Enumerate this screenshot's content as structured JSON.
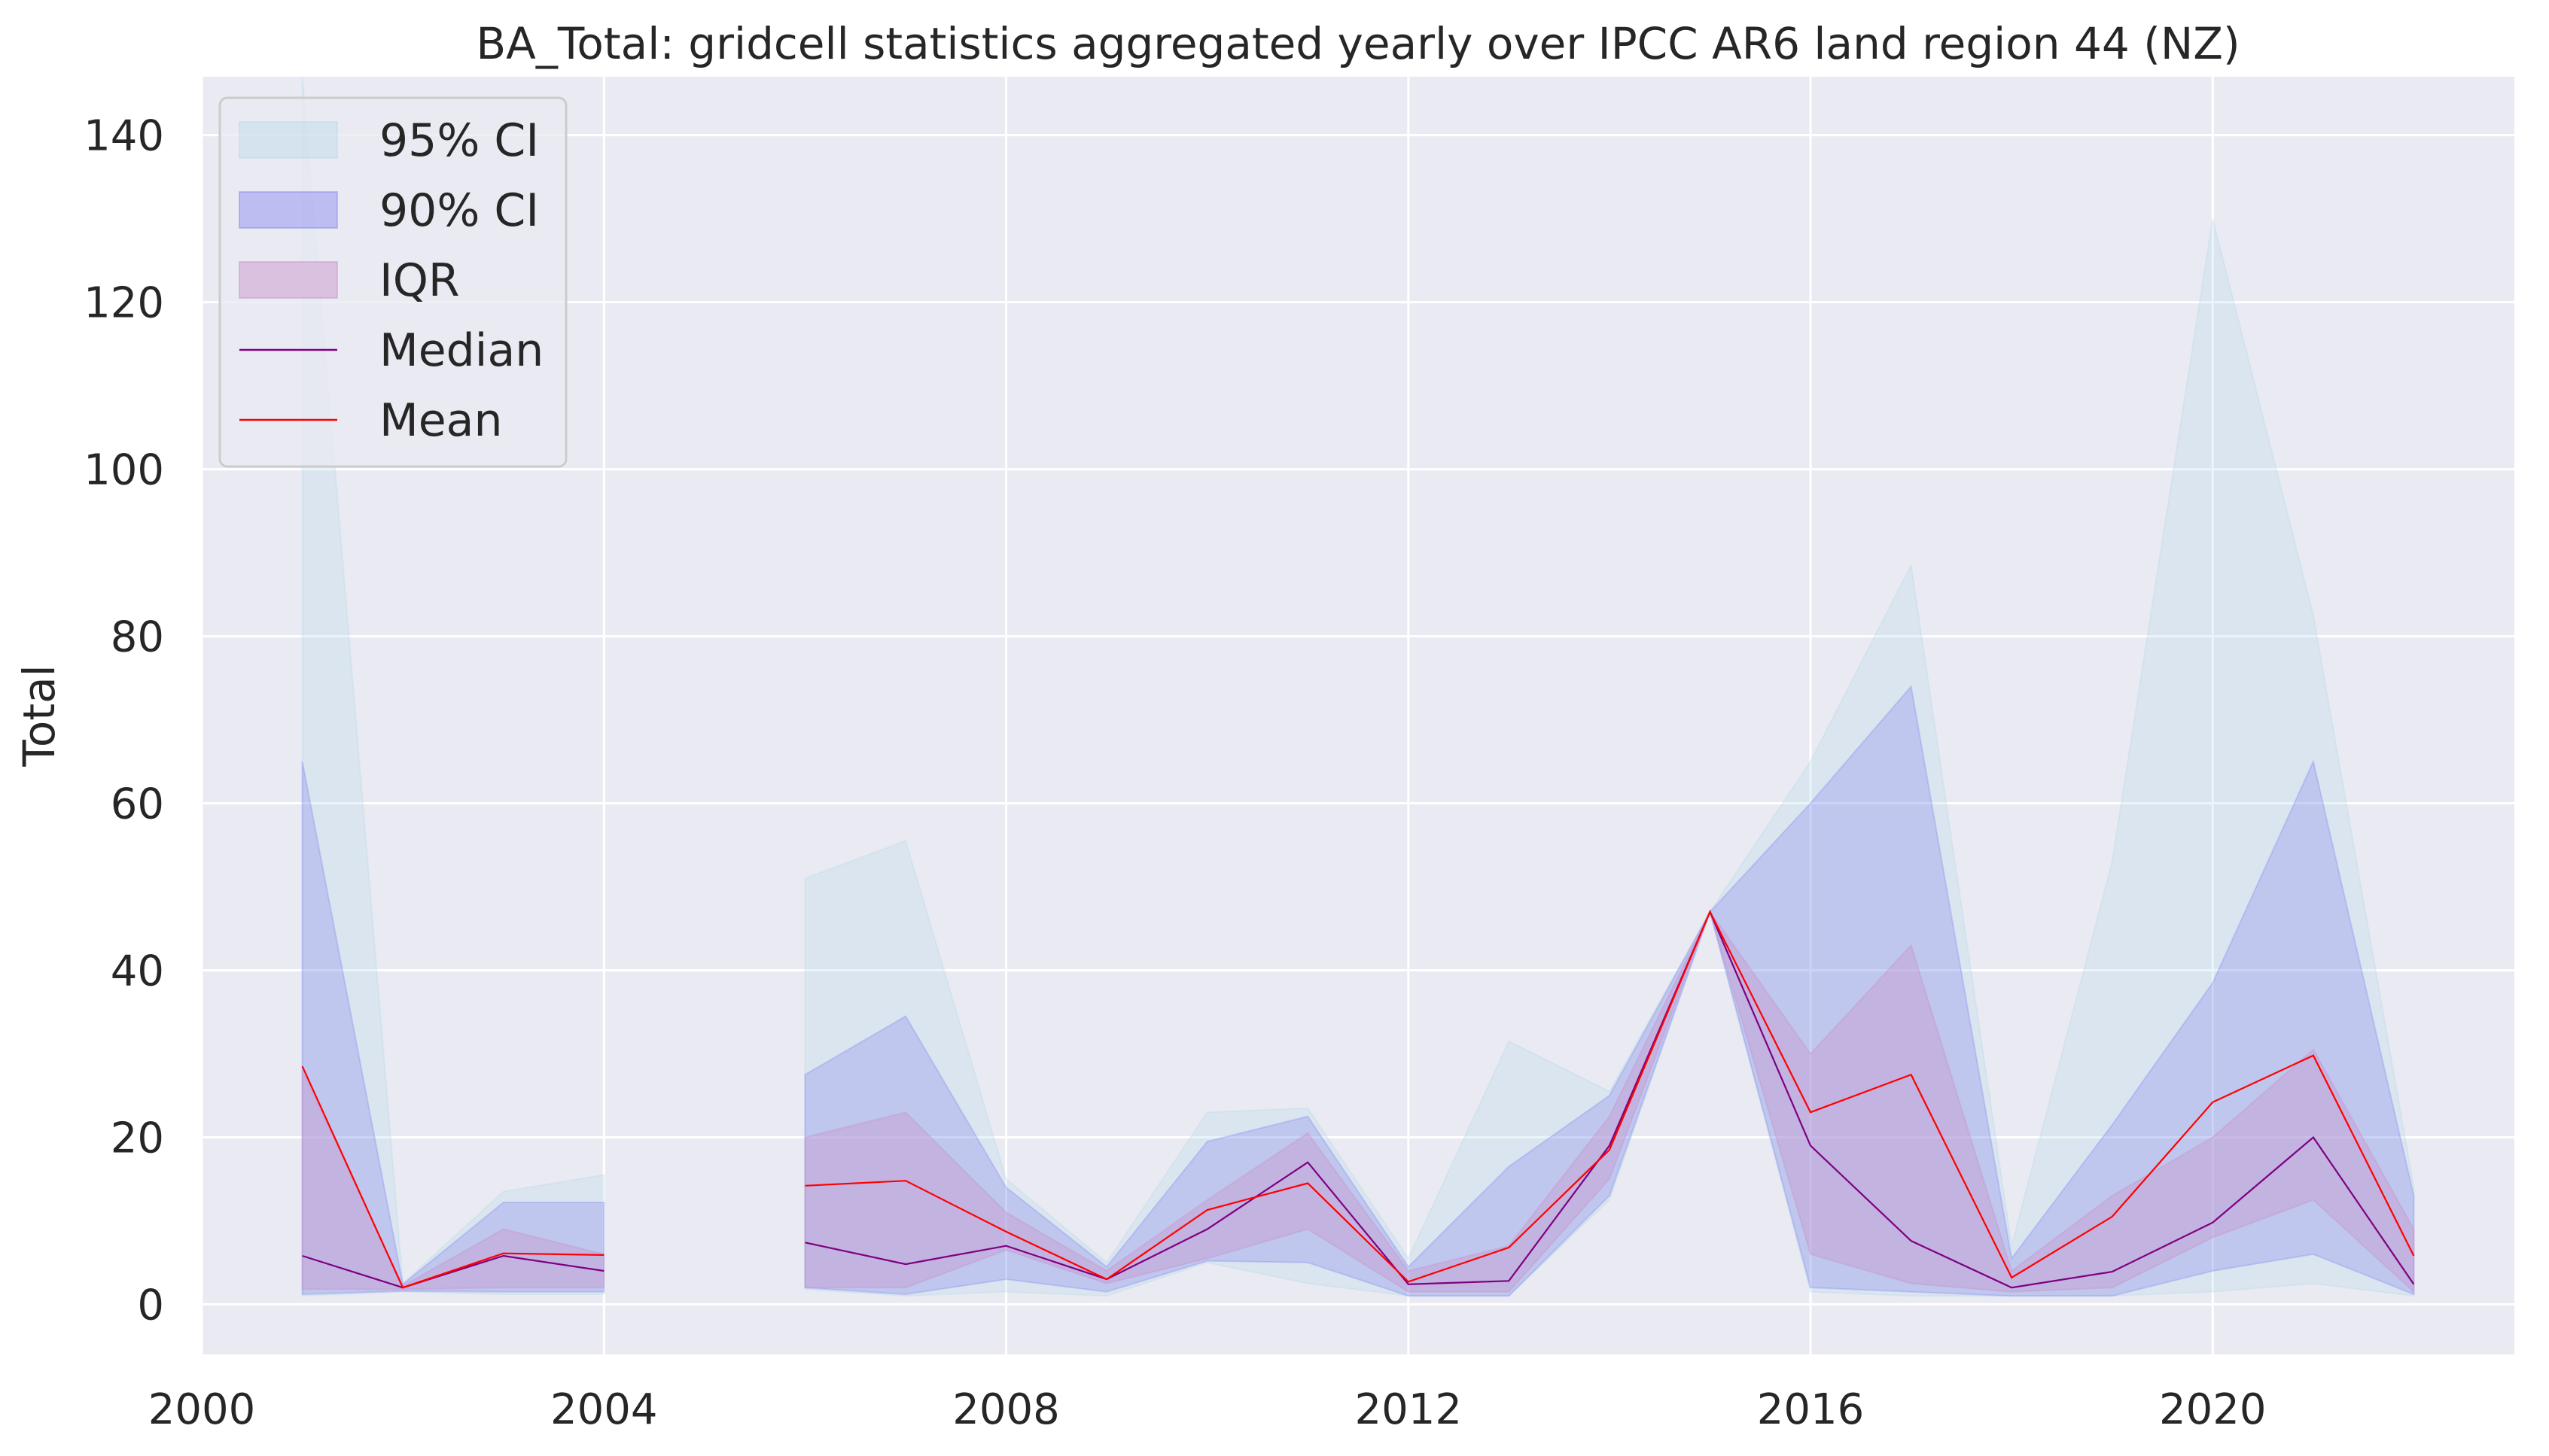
{
  "chart_data": {
    "type": "area",
    "title": "BA_Total: gridcell statistics aggregated yearly over IPCC AR6 land region 44 (NZ)",
    "xlabel": "",
    "ylabel": "Total",
    "xlim": [
      2000,
      2023
    ],
    "ylim": [
      -6,
      147
    ],
    "xticks": [
      2000,
      2004,
      2008,
      2012,
      2016,
      2020
    ],
    "yticks": [
      0,
      20,
      40,
      60,
      80,
      100,
      120,
      140
    ],
    "grid": true,
    "legend_position": "top-left",
    "segments": [
      {
        "x": [
          2001,
          2002,
          2003,
          2004
        ],
        "ci95": {
          "lower": [
            1.0,
            1.5,
            1.2,
            1.2
          ],
          "upper": [
            147,
            2.5,
            13.5,
            15.5
          ]
        },
        "ci90": {
          "lower": [
            1.2,
            1.6,
            1.5,
            1.5
          ],
          "upper": [
            65,
            2.4,
            12.2,
            12.2
          ]
        },
        "iqr": {
          "lower": [
            1.8,
            1.8,
            2.0,
            2.0
          ],
          "upper": [
            28,
            2.2,
            9.0,
            6.0
          ]
        },
        "median": [
          5.8,
          2.0,
          5.8,
          4.0
        ],
        "mean": [
          28.5,
          2.0,
          6.1,
          5.9
        ]
      },
      {
        "x": [
          2006,
          2007,
          2008,
          2009,
          2010,
          2011,
          2012,
          2013,
          2014,
          2015,
          2016,
          2017,
          2018,
          2019,
          2020,
          2021,
          2022
        ],
        "ci95": {
          "lower": [
            1.8,
            1.0,
            1.5,
            1.0,
            5.0,
            2.5,
            1.0,
            1.0,
            12.5,
            47.0,
            1.5,
            1.0,
            1.0,
            1.0,
            1.5,
            2.5,
            1.0
          ],
          "upper": [
            51,
            55.5,
            15.0,
            5.0,
            23.0,
            23.5,
            5.5,
            31.5,
            25.5,
            47.0,
            65.0,
            88.5,
            7.0,
            53.0,
            130.0,
            82.5,
            14.0
          ]
        },
        "ci90": {
          "lower": [
            2.0,
            1.2,
            3.0,
            1.5,
            5.2,
            5.0,
            1.0,
            1.0,
            13.0,
            47.0,
            2.0,
            1.5,
            1.0,
            1.0,
            4.0,
            6.0,
            1.2
          ],
          "upper": [
            27.5,
            34.5,
            14.0,
            4.5,
            19.5,
            22.5,
            4.5,
            16.5,
            25.0,
            47.0,
            60.0,
            74.0,
            5.5,
            21.5,
            38.5,
            65.0,
            13.0
          ]
        },
        "iqr": {
          "lower": [
            2.0,
            2.0,
            6.5,
            2.5,
            5.5,
            9.0,
            1.5,
            1.5,
            15.0,
            47.0,
            6.0,
            2.5,
            1.5,
            2.0,
            8.0,
            12.5,
            1.5
          ],
          "upper": [
            20.0,
            23.0,
            11.0,
            4.0,
            12.5,
            20.5,
            4.0,
            7.0,
            22.5,
            47.0,
            30.0,
            43.0,
            4.0,
            13.0,
            20.0,
            30.5,
            9.0
          ]
        },
        "median": [
          7.4,
          4.8,
          7.0,
          3.0,
          9.0,
          17.0,
          2.4,
          2.8,
          19.0,
          47.0,
          19.0,
          7.6,
          2.0,
          3.9,
          9.8,
          20.0,
          2.4
        ],
        "mean": [
          14.2,
          14.8,
          8.7,
          3.0,
          11.3,
          14.5,
          2.7,
          6.8,
          18.5,
          47.0,
          23.0,
          27.5,
          3.2,
          10.5,
          24.2,
          29.8,
          5.8
        ]
      }
    ],
    "series": [
      {
        "name": "95% CI",
        "kind": "band",
        "color": "#add8e6"
      },
      {
        "name": "90% CI",
        "kind": "band",
        "color": "#7b7bf0"
      },
      {
        "name": "IQR",
        "kind": "band",
        "color": "#c890c8"
      },
      {
        "name": "Median",
        "kind": "line",
        "color": "#800080"
      },
      {
        "name": "Mean",
        "kind": "line",
        "color": "#ff0000"
      }
    ]
  },
  "style": {
    "plot_background": "#eaeaf2",
    "grid_color": "#ffffff",
    "text_color": "#262626"
  }
}
